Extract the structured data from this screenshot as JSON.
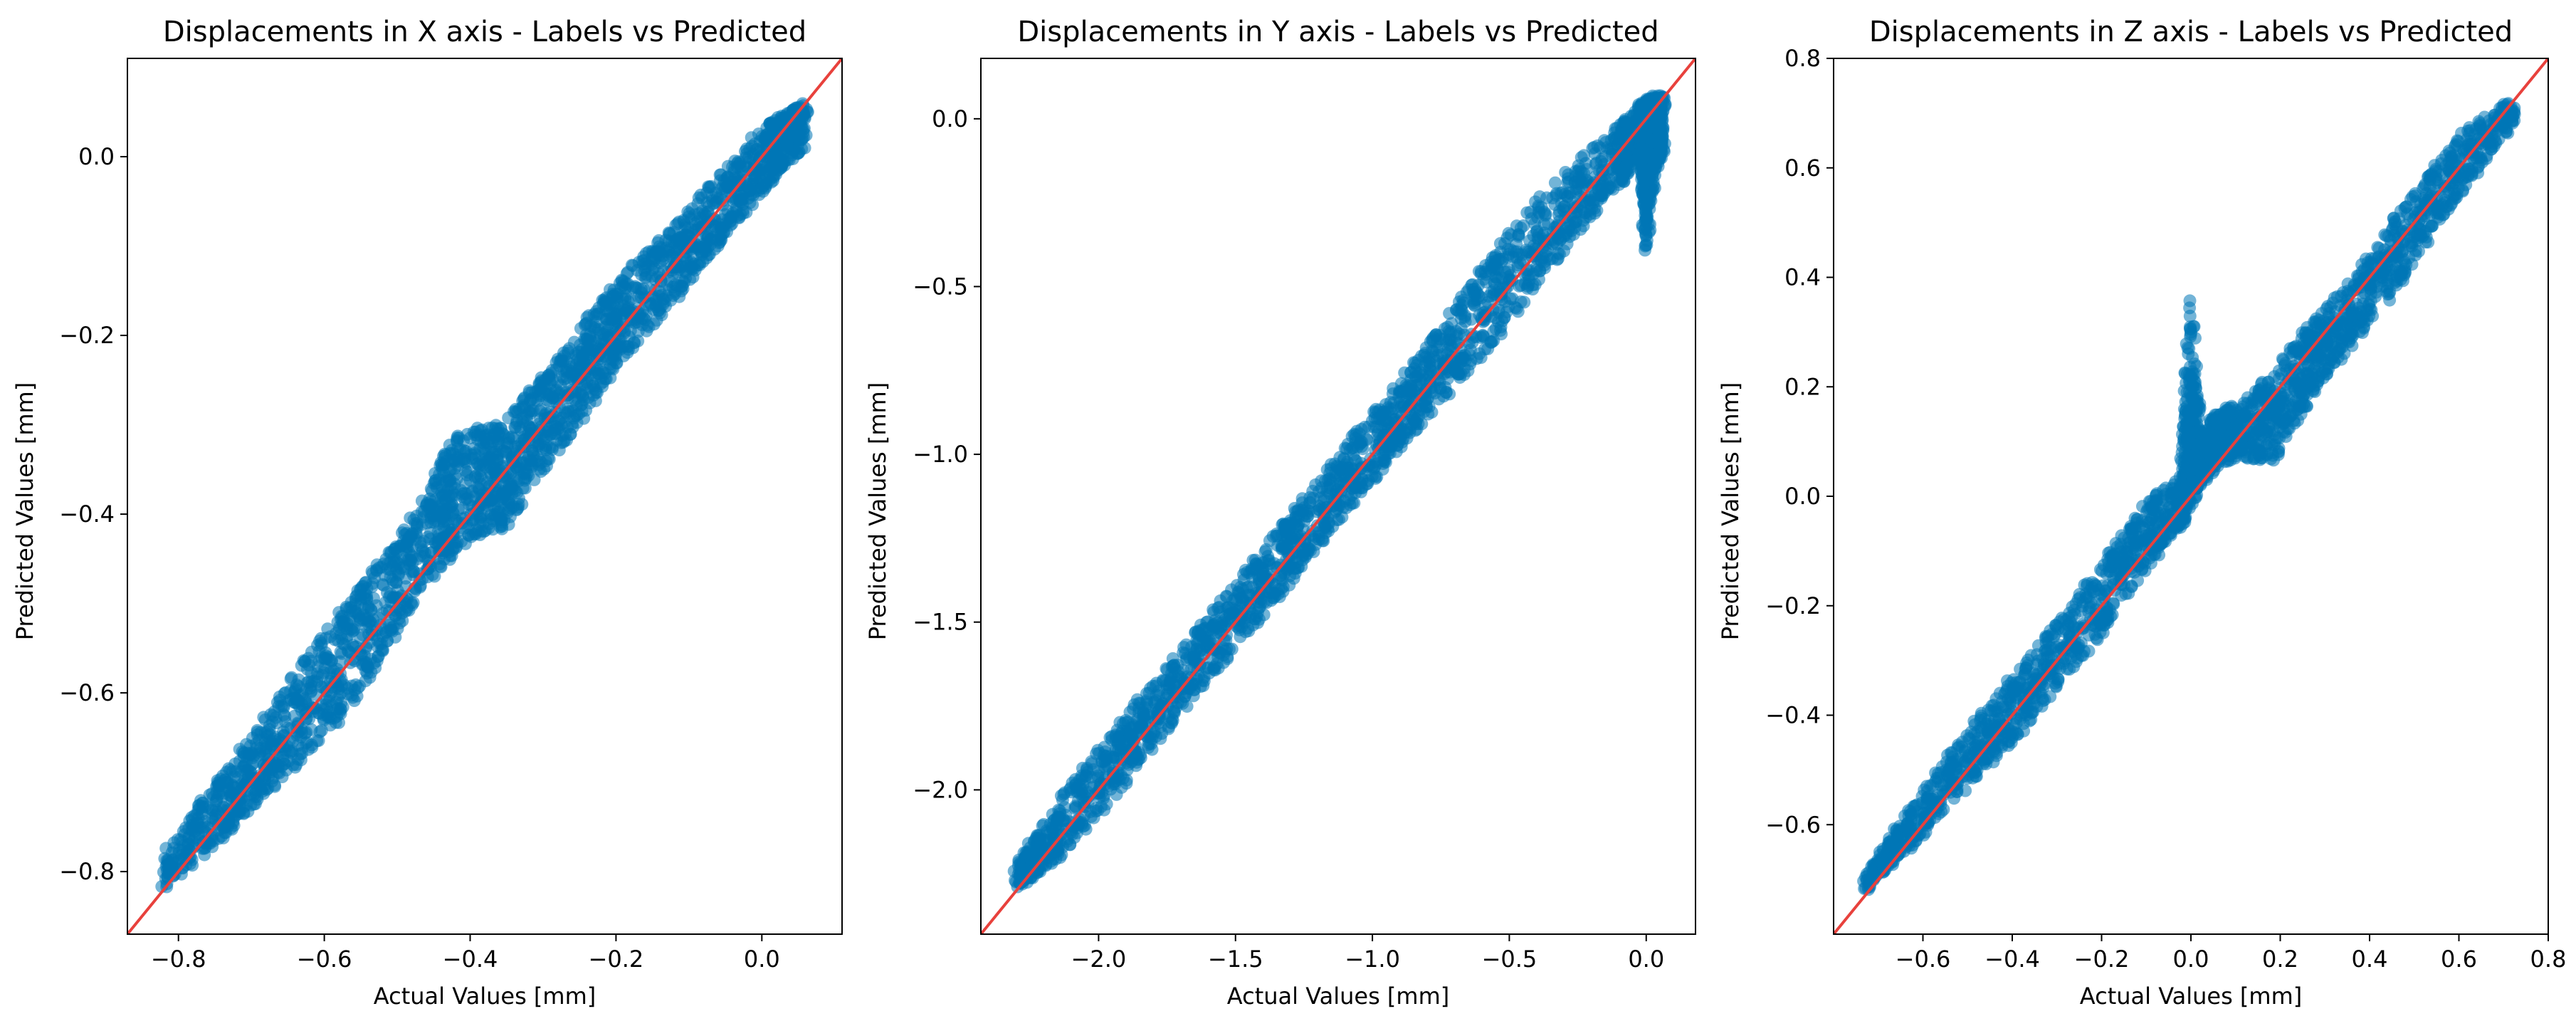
{
  "colors": {
    "points": "#0077b6",
    "reference_line": "#e8413c",
    "axes": "#000000",
    "background": "#ffffff"
  },
  "chart_data": [
    {
      "type": "scatter",
      "title": "Displacements in X axis - Labels vs Predicted",
      "xlabel": "Actual Values [mm]",
      "ylabel": "Predicted Values [mm]",
      "xlim": [
        -0.87,
        0.11
      ],
      "ylim": [
        -0.87,
        0.11
      ],
      "xticks": [
        -0.8,
        -0.6,
        -0.4,
        -0.2,
        0.0
      ],
      "yticks": [
        -0.8,
        -0.6,
        -0.4,
        -0.2,
        0.0
      ],
      "xtick_labels": [
        "−0.8",
        "−0.6",
        "−0.4",
        "−0.2",
        "0.0"
      ],
      "ytick_labels": [
        "−0.8",
        "−0.6",
        "−0.4",
        "−0.2",
        "0.0"
      ],
      "reference_line": "y = x",
      "band": [
        [
          -0.82,
          -0.82,
          -0.78
        ],
        [
          -0.75,
          -0.77,
          -0.7
        ],
        [
          -0.7,
          -0.73,
          -0.65
        ],
        [
          -0.65,
          -0.69,
          -0.59
        ],
        [
          -0.6,
          -0.66,
          -0.53
        ],
        [
          -0.55,
          -0.6,
          -0.48
        ],
        [
          -0.5,
          -0.53,
          -0.43
        ],
        [
          -0.45,
          -0.47,
          -0.36
        ],
        [
          -0.42,
          -0.44,
          -0.31
        ],
        [
          -0.38,
          -0.42,
          -0.3
        ],
        [
          -0.35,
          -0.42,
          -0.3
        ],
        [
          -0.32,
          -0.37,
          -0.26
        ],
        [
          -0.28,
          -0.33,
          -0.23
        ],
        [
          -0.24,
          -0.29,
          -0.18
        ],
        [
          -0.2,
          -0.24,
          -0.14
        ],
        [
          -0.15,
          -0.19,
          -0.1
        ],
        [
          -0.1,
          -0.14,
          -0.06
        ],
        [
          -0.05,
          -0.09,
          -0.01
        ],
        [
          0.0,
          -0.04,
          0.03
        ],
        [
          0.03,
          -0.01,
          0.05
        ],
        [
          0.06,
          0.01,
          0.06
        ]
      ]
    },
    {
      "type": "scatter",
      "title": "Displacements in Y axis - Labels vs Predicted",
      "xlabel": "Actual Values [mm]",
      "ylabel": "Predicted Values [mm]",
      "xlim": [
        -2.43,
        0.18
      ],
      "ylim": [
        -2.43,
        0.18
      ],
      "xticks": [
        -2.0,
        -1.5,
        -1.0,
        -0.5,
        0.0
      ],
      "yticks": [
        -2.0,
        -1.5,
        -1.0,
        -0.5,
        0.0
      ],
      "xtick_labels": [
        "−2.0",
        "−1.5",
        "−1.0",
        "−0.5",
        "0.0"
      ],
      "ytick_labels": [
        "−2.0",
        "−1.5",
        "−1.0",
        "−0.5",
        "0.0"
      ],
      "reference_line": "y = x",
      "band": [
        [
          -2.3,
          -2.3,
          -2.22
        ],
        [
          -2.1,
          -2.17,
          -1.98
        ],
        [
          -1.9,
          -1.98,
          -1.78
        ],
        [
          -1.7,
          -1.77,
          -1.58
        ],
        [
          -1.5,
          -1.58,
          -1.38
        ],
        [
          -1.3,
          -1.38,
          -1.18
        ],
        [
          -1.1,
          -1.18,
          -0.98
        ],
        [
          -0.9,
          -0.98,
          -0.78
        ],
        [
          -0.7,
          -0.8,
          -0.56
        ],
        [
          -0.5,
          -0.62,
          -0.34
        ],
        [
          -0.3,
          -0.4,
          -0.16
        ],
        [
          -0.1,
          -0.2,
          -0.02
        ],
        [
          -0.02,
          -0.12,
          0.04
        ],
        [
          0.0,
          -0.42,
          0.06
        ],
        [
          0.03,
          -0.15,
          0.07
        ],
        [
          0.06,
          -0.1,
          0.07
        ]
      ]
    },
    {
      "type": "scatter",
      "title": "Displacements in Z axis - Labels vs Predicted",
      "xlabel": "Actual Values [mm]",
      "ylabel": "Predicted Values [mm]",
      "xlim": [
        -0.8,
        0.8
      ],
      "ylim": [
        -0.8,
        0.8
      ],
      "xticks": [
        -0.6,
        -0.4,
        -0.2,
        0.0,
        0.2,
        0.4,
        0.6,
        0.8
      ],
      "yticks": [
        -0.6,
        -0.4,
        -0.2,
        0.0,
        0.2,
        0.4,
        0.6,
        0.8
      ],
      "xtick_labels": [
        "−0.6",
        "−0.4",
        "−0.2",
        "0.0",
        "0.2",
        "0.4",
        "0.6",
        "0.8"
      ],
      "ytick_labels": [
        "−0.6",
        "−0.4",
        "−0.2",
        "0.0",
        "0.2",
        "0.4",
        "0.6",
        "0.8"
      ],
      "reference_line": "y = x",
      "band": [
        [
          -0.73,
          -0.72,
          -0.69
        ],
        [
          -0.6,
          -0.62,
          -0.54
        ],
        [
          -0.5,
          -0.53,
          -0.43
        ],
        [
          -0.4,
          -0.45,
          -0.33
        ],
        [
          -0.3,
          -0.35,
          -0.23
        ],
        [
          -0.2,
          -0.25,
          -0.12
        ],
        [
          -0.1,
          -0.13,
          -0.01
        ],
        [
          -0.02,
          -0.05,
          0.04
        ],
        [
          0.0,
          -0.02,
          0.37
        ],
        [
          0.02,
          0.02,
          0.1
        ],
        [
          0.05,
          0.05,
          0.15
        ],
        [
          0.1,
          0.07,
          0.17
        ],
        [
          0.18,
          0.06,
          0.22
        ],
        [
          0.25,
          0.15,
          0.3
        ],
        [
          0.3,
          0.22,
          0.34
        ],
        [
          0.4,
          0.31,
          0.44
        ],
        [
          0.5,
          0.43,
          0.56
        ],
        [
          0.6,
          0.55,
          0.66
        ],
        [
          0.73,
          0.69,
          0.73
        ]
      ]
    }
  ]
}
